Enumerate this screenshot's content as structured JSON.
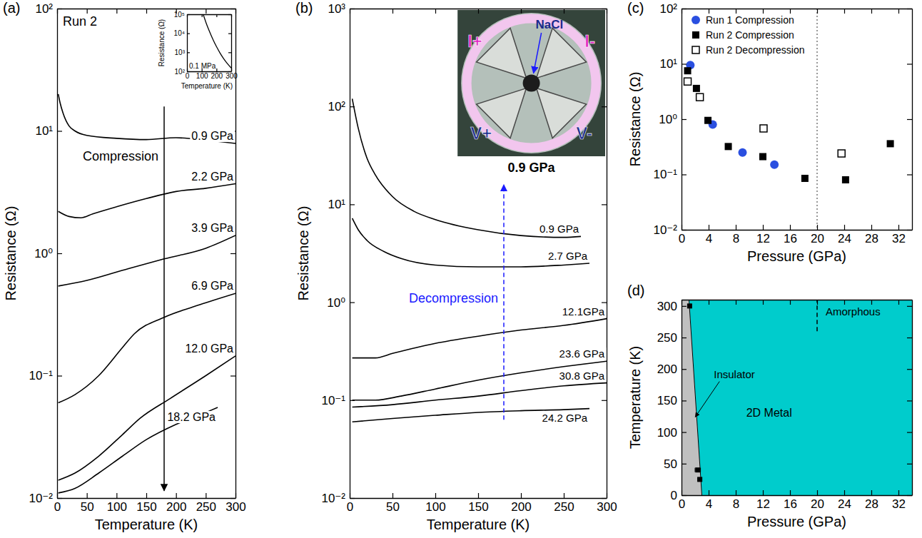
{
  "chart_data": [
    {
      "panel": "(a)",
      "type": "line",
      "title": "Run 2",
      "xlabel": "Temperature (K)",
      "ylabel": "Resistance (Ω)",
      "log": "y",
      "xlim": [
        0,
        300
      ],
      "xticks": [
        0,
        50,
        100,
        150,
        200,
        250,
        300
      ],
      "ylim": [
        0.01,
        100
      ],
      "yticks": [
        {
          "value": 0.01,
          "label": "10⁻²"
        },
        {
          "value": 0.1,
          "label": "10⁻¹"
        },
        {
          "value": 1,
          "label": "10⁰"
        },
        {
          "value": 10,
          "label": "10¹"
        },
        {
          "value": 100,
          "label": "10²"
        }
      ],
      "annotation": {
        "text": "Compression",
        "color": "#000000",
        "line_style": "solid"
      },
      "series": [
        {
          "name": "0.9 GPa",
          "color": "#000000",
          "x": [
            2,
            5,
            10,
            20,
            30,
            50,
            100,
            150,
            200,
            250,
            300
          ],
          "values": [
            20,
            17,
            14,
            11,
            10,
            9.2,
            8.7,
            8.5,
            8.8,
            8.4,
            7.9
          ]
        },
        {
          "name": "2.2 GPa",
          "color": "#000000",
          "x": [
            2,
            20,
            40,
            60,
            100,
            150,
            200,
            250,
            300
          ],
          "values": [
            2.2,
            2.0,
            1.95,
            2.1,
            2.4,
            2.8,
            3.2,
            3.4,
            3.7
          ]
        },
        {
          "name": "3.9 GPa",
          "color": "#000000",
          "x": [
            2,
            50,
            120,
            180,
            250,
            300
          ],
          "values": [
            0.54,
            0.6,
            0.75,
            0.9,
            1.1,
            1.4
          ]
        },
        {
          "name": "6.9 GPa",
          "color": "#000000",
          "x": [
            2,
            30,
            70,
            110,
            130,
            180,
            240,
            300
          ],
          "values": [
            0.06,
            0.07,
            0.1,
            0.17,
            0.22,
            0.3,
            0.38,
            0.47
          ]
        },
        {
          "name": "12.0 GPa",
          "color": "#000000",
          "x": [
            2,
            30,
            70,
            110,
            140,
            190,
            250,
            300
          ],
          "values": [
            0.014,
            0.016,
            0.022,
            0.033,
            0.045,
            0.065,
            0.1,
            0.145
          ]
        },
        {
          "name": "18.2 GPa",
          "color": "#000000",
          "x": [
            2,
            30,
            70,
            110,
            150,
            200,
            250,
            270
          ],
          "values": [
            0.011,
            0.012,
            0.016,
            0.022,
            0.03,
            0.04,
            0.05,
            0.055
          ]
        }
      ],
      "inset": {
        "type": "line",
        "xlabel": "Temperature (K)",
        "ylabel": "Resistance (Ω)",
        "log": "y",
        "xlim": [
          0,
          300
        ],
        "xticks": [
          0,
          100,
          200,
          300
        ],
        "ylim": [
          100,
          100000
        ],
        "yticks": [
          {
            "value": 100,
            "label": "10²"
          },
          {
            "value": 1000,
            "label": "10³"
          },
          {
            "value": 10000,
            "label": "10⁴"
          },
          {
            "value": 100000,
            "label": "10⁵"
          }
        ],
        "series": [
          {
            "name": "0.1 MPa",
            "color": "#000000",
            "x": [
              110,
              130,
              150,
              175,
              200,
              225,
              250,
              275,
              300
            ],
            "values": [
              100000,
              35000,
              14000,
              5000,
              2000,
              900,
              450,
              250,
              150
            ]
          }
        ]
      }
    },
    {
      "panel": "(b)",
      "type": "line",
      "xlabel": "Temperature (K)",
      "ylabel": "Resistance (Ω)",
      "log": "y",
      "xlim": [
        0,
        300
      ],
      "xticks": [
        0,
        50,
        100,
        150,
        200,
        250,
        300
      ],
      "ylim": [
        0.01,
        1000
      ],
      "yticks": [
        {
          "value": 0.01,
          "label": "10⁻²"
        },
        {
          "value": 0.1,
          "label": "10⁻¹"
        },
        {
          "value": 1,
          "label": "10⁰"
        },
        {
          "value": 10,
          "label": "10¹"
        },
        {
          "value": 100,
          "label": "10²"
        },
        {
          "value": 1000,
          "label": "10³"
        }
      ],
      "annotation": {
        "text": "Decompression",
        "color": "#1a1aff",
        "line_style": "dashed"
      },
      "series": [
        {
          "name": "0.9 GPa",
          "color": "#000000",
          "x": [
            3,
            10,
            20,
            30,
            50,
            75,
            100,
            150,
            200,
            250,
            270
          ],
          "values": [
            120,
            60,
            30,
            20,
            12,
            8.5,
            7,
            5.5,
            4.8,
            4.6,
            4.7
          ]
        },
        {
          "name": "2.7 GPa",
          "color": "#000000",
          "x": [
            3,
            10,
            20,
            40,
            60,
            100,
            150,
            200,
            250,
            280
          ],
          "values": [
            7.2,
            5.5,
            4.3,
            3.3,
            2.8,
            2.4,
            2.3,
            2.3,
            2.4,
            2.5
          ]
        },
        {
          "name": "12.1GPa",
          "color": "#000000",
          "x": [
            3,
            30,
            50,
            100,
            150,
            200,
            250,
            300
          ],
          "values": [
            0.27,
            0.27,
            0.3,
            0.38,
            0.45,
            0.52,
            0.58,
            0.68
          ]
        },
        {
          "name": "23.6 GPa",
          "color": "#000000",
          "x": [
            3,
            30,
            60,
            100,
            150,
            200,
            250,
            300
          ],
          "values": [
            0.1,
            0.1,
            0.11,
            0.13,
            0.16,
            0.19,
            0.22,
            0.25
          ]
        },
        {
          "name": "30.8 GPa",
          "color": "#000000",
          "x": [
            3,
            50,
            100,
            150,
            200,
            250,
            300
          ],
          "values": [
            0.085,
            0.09,
            0.1,
            0.11,
            0.125,
            0.14,
            0.15
          ]
        },
        {
          "name": "24.2 GPa",
          "color": "#000000",
          "x": [
            3,
            50,
            100,
            150,
            200,
            250,
            280
          ],
          "values": [
            0.06,
            0.065,
            0.07,
            0.075,
            0.078,
            0.08,
            0.082
          ]
        }
      ],
      "inset": {
        "type": "photo",
        "sample": "NaCl",
        "electrodes": [
          "I+",
          "I-",
          "V+",
          "V-"
        ],
        "caption": "0.9 GPa"
      }
    },
    {
      "panel": "(c)",
      "type": "scatter",
      "xlabel": "Pressure (GPa)",
      "ylabel": "Resistance (Ω)",
      "log": "y",
      "xlim": [
        0,
        34
      ],
      "xticks": [
        0,
        4,
        8,
        12,
        16,
        20,
        24,
        28,
        32
      ],
      "ylim": [
        0.01,
        100
      ],
      "yticks": [
        {
          "value": 0.01,
          "label": "10⁻²"
        },
        {
          "value": 0.1,
          "label": "10⁻¹"
        },
        {
          "value": 1,
          "label": "10⁰"
        },
        {
          "value": 10,
          "label": "10¹"
        },
        {
          "value": 100,
          "label": "10²"
        }
      ],
      "legend": "upper left",
      "vline": {
        "x": 20,
        "line_style": "dotted"
      },
      "series": [
        {
          "name": "Run 1 Compression",
          "color": "#2a4fe0",
          "marker": "circle",
          "x": [
            1.3,
            4.6,
            9.0,
            13.7
          ],
          "values": [
            9.5,
            0.8,
            0.25,
            0.15
          ]
        },
        {
          "name": "Run 2 Compression",
          "color": "#000000",
          "marker": "square",
          "x": [
            0.9,
            2.2,
            3.9,
            6.9,
            12.0,
            18.2,
            24.2,
            30.8
          ],
          "values": [
            7.5,
            3.6,
            0.95,
            0.32,
            0.21,
            0.085,
            0.08,
            0.36
          ]
        },
        {
          "name": "Run 2 Decompression",
          "color": "#000000",
          "marker": "open_square",
          "x": [
            0.9,
            2.7,
            12.1,
            23.6
          ],
          "values": [
            4.8,
            2.5,
            0.68,
            0.24
          ]
        }
      ]
    },
    {
      "panel": "(d)",
      "type": "phase",
      "xlabel": "Pressure (GPa)",
      "ylabel": "Temperature (K)",
      "xlim": [
        0,
        34
      ],
      "xticks": [
        0,
        4,
        8,
        12,
        16,
        20,
        24,
        28,
        32
      ],
      "ylim": [
        0,
        310
      ],
      "yticks": [
        0,
        50,
        100,
        150,
        200,
        250,
        300
      ],
      "regions": [
        {
          "name": "Insulator",
          "color": "#c0c0c0"
        },
        {
          "name": "2D Metal",
          "color": "#00cccc"
        }
      ],
      "boundary": {
        "x": [
          1.1,
          3.0
        ],
        "y": [
          310,
          0
        ]
      },
      "points": {
        "x": [
          1.2,
          2.4,
          2.7
        ],
        "y": [
          300,
          40,
          25
        ],
        "xerr": [
          0.1,
          0.4,
          0.3
        ]
      },
      "amorphous": {
        "name": "Amorphous",
        "x": 20,
        "y": [
          260,
          310
        ],
        "line_style": "dashed"
      }
    }
  ]
}
